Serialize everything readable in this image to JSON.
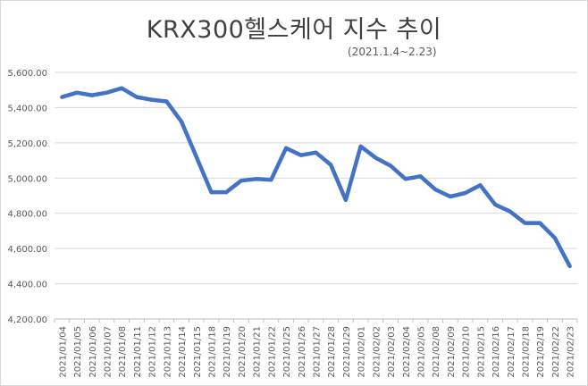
{
  "chart_data": {
    "type": "line",
    "title": "KRX300헬스케어  지수  추이",
    "subtitle": "(2021.1.4~2.23)",
    "xlabel": "",
    "ylabel": "",
    "ylim": [
      4200,
      5600
    ],
    "y_ticks": [
      "4,200.00",
      "4,400.00",
      "4,600.00",
      "4,800.00",
      "5,000.00",
      "5,200.00",
      "5,400.00",
      "5,600.00"
    ],
    "grid": true,
    "legend": "none",
    "line_color": "#4472c4",
    "categories": [
      "2021/01/04",
      "2021/01/05",
      "2021/01/06",
      "2021/01/07",
      "2021/01/08",
      "2021/01/11",
      "2021/01/12",
      "2021/01/13",
      "2021/01/14",
      "2021/01/15",
      "2021/01/18",
      "2021/01/19",
      "2021/01/20",
      "2021/01/21",
      "2021/01/22",
      "2021/01/25",
      "2021/01/26",
      "2021/01/27",
      "2021/01/28",
      "2021/01/29",
      "2021/02/01",
      "2021/02/02",
      "2021/02/03",
      "2021/02/04",
      "2021/02/05",
      "2021/02/08",
      "2021/02/09",
      "2021/02/10",
      "2021/02/15",
      "2021/02/16",
      "2021/02/17",
      "2021/02/18",
      "2021/02/19",
      "2021/02/22",
      "2021/02/23"
    ],
    "values": [
      5460,
      5485,
      5470,
      5485,
      5510,
      5460,
      5445,
      5435,
      5320,
      5120,
      4920,
      4920,
      4985,
      4995,
      4990,
      5170,
      5130,
      5145,
      5075,
      4875,
      5180,
      5115,
      5070,
      4995,
      5010,
      4935,
      4895,
      4915,
      4960,
      4850,
      4810,
      4745,
      4745,
      4660,
      4500
    ]
  }
}
